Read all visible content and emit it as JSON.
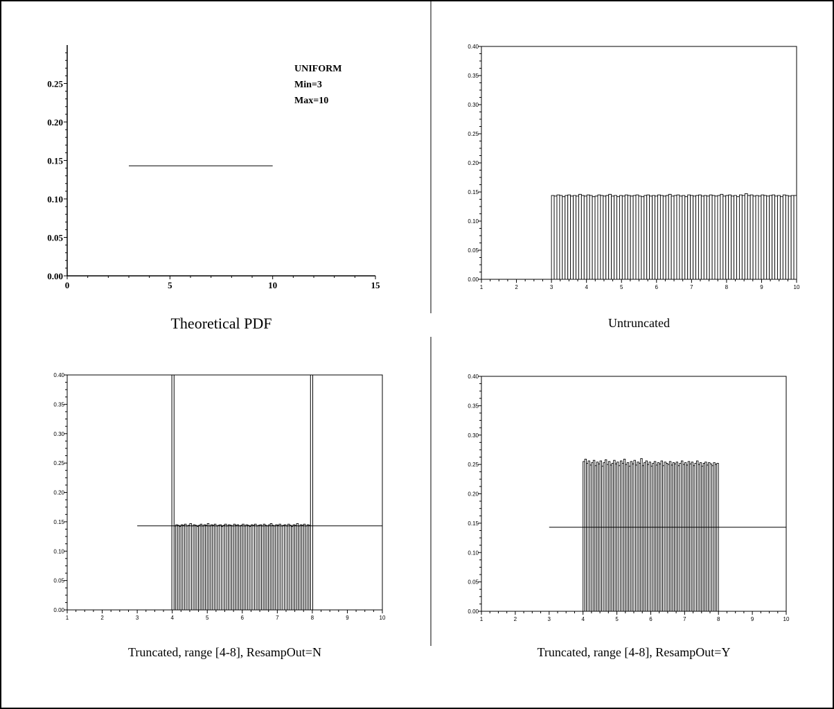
{
  "chart_data": [
    {
      "id": "theoretical",
      "type": "line",
      "caption": "Theoretical PDF",
      "annotation": [
        "UNIFORM",
        "Min=3",
        "Max=10"
      ],
      "xlim": [
        0,
        15
      ],
      "ylim": [
        0,
        0.3
      ],
      "x_ticks": [
        0,
        5,
        10,
        15
      ],
      "x_tick_labels": [
        "0",
        "5",
        "10",
        "15"
      ],
      "y_ticks": [
        0.0,
        0.05,
        0.1,
        0.15,
        0.2,
        0.25
      ],
      "y_tick_labels": [
        "0.00",
        "0.05",
        "0.10",
        "0.15",
        "0.20",
        "0.25"
      ],
      "series": [
        {
          "x": [
            3,
            10
          ],
          "y": [
            0.143,
            0.143
          ]
        }
      ]
    },
    {
      "id": "untruncated",
      "type": "bar",
      "caption": "Untruncated",
      "xlim": [
        1,
        10
      ],
      "ylim": [
        0,
        0.4
      ],
      "x_ticks": [
        1,
        2,
        3,
        4,
        5,
        6,
        7,
        8,
        9,
        10
      ],
      "x_tick_labels": [
        "1",
        "2",
        "3",
        "4",
        "5",
        "6",
        "7",
        "8",
        "9",
        "10"
      ],
      "y_ticks": [
        0.0,
        0.05,
        0.1,
        0.15,
        0.2,
        0.25,
        0.3,
        0.35,
        0.4
      ],
      "y_tick_labels": [
        "0.00",
        "0.05",
        "0.10",
        "0.15",
        "0.20",
        "0.25",
        "0.30",
        "0.35",
        "0.40"
      ],
      "bin_range": [
        3,
        10
      ],
      "bin_count": 90,
      "approx_height": 0.143,
      "bars": [
        0.144,
        0.143,
        0.145,
        0.144,
        0.142,
        0.144,
        0.145,
        0.143,
        0.144,
        0.143,
        0.146,
        0.144,
        0.143,
        0.145,
        0.144,
        0.142,
        0.143,
        0.145,
        0.144,
        0.143,
        0.144,
        0.146,
        0.143,
        0.144,
        0.142,
        0.144,
        0.143,
        0.145,
        0.144,
        0.143,
        0.144,
        0.145,
        0.143,
        0.142,
        0.144,
        0.145,
        0.143,
        0.144,
        0.143,
        0.145,
        0.144,
        0.143,
        0.144,
        0.146,
        0.143,
        0.144,
        0.145,
        0.143,
        0.144,
        0.142,
        0.145,
        0.144,
        0.143,
        0.144,
        0.145,
        0.143,
        0.144,
        0.143,
        0.145,
        0.144,
        0.143,
        0.144,
        0.146,
        0.143,
        0.144,
        0.145,
        0.143,
        0.144,
        0.142,
        0.145,
        0.144,
        0.147,
        0.144,
        0.145,
        0.143,
        0.144,
        0.143,
        0.145,
        0.144,
        0.143,
        0.144,
        0.145,
        0.143,
        0.144,
        0.142,
        0.145,
        0.144,
        0.143,
        0.144,
        0.144
      ]
    },
    {
      "id": "truncated_n",
      "type": "bar",
      "caption": "Truncated, range [4-8], ResampOut=N",
      "xlim": [
        1,
        10
      ],
      "ylim": [
        0,
        0.4
      ],
      "x_ticks": [
        1,
        2,
        3,
        4,
        5,
        6,
        7,
        8,
        9,
        10
      ],
      "x_tick_labels": [
        "1",
        "2",
        "3",
        "4",
        "5",
        "6",
        "7",
        "8",
        "9",
        "10"
      ],
      "y_ticks": [
        0.0,
        0.05,
        0.1,
        0.15,
        0.2,
        0.25,
        0.3,
        0.35,
        0.4
      ],
      "y_tick_labels": [
        "0.00",
        "0.05",
        "0.10",
        "0.15",
        "0.20",
        "0.25",
        "0.30",
        "0.35",
        "0.40"
      ],
      "bin_range": [
        4,
        8
      ],
      "bin_count": 80,
      "approx_height": 0.143,
      "edge_spikes": [
        {
          "x": 4.02,
          "y": 0.4
        },
        {
          "x": 7.98,
          "y": 0.4
        }
      ],
      "pdf_line": {
        "x": [
          3,
          10
        ],
        "y": [
          0.143,
          0.143
        ]
      },
      "bars": [
        0.144,
        0.143,
        0.145,
        0.144,
        0.142,
        0.145,
        0.144,
        0.146,
        0.143,
        0.144,
        0.147,
        0.143,
        0.145,
        0.144,
        0.142,
        0.144,
        0.146,
        0.143,
        0.145,
        0.144,
        0.147,
        0.143,
        0.145,
        0.144,
        0.146,
        0.143,
        0.144,
        0.145,
        0.142,
        0.144,
        0.146,
        0.143,
        0.145,
        0.144,
        0.143,
        0.146,
        0.144,
        0.145,
        0.143,
        0.144,
        0.146,
        0.143,
        0.145,
        0.144,
        0.142,
        0.145,
        0.144,
        0.146,
        0.143,
        0.144,
        0.145,
        0.143,
        0.146,
        0.144,
        0.143,
        0.145,
        0.147,
        0.144,
        0.143,
        0.145,
        0.144,
        0.146,
        0.143,
        0.144,
        0.145,
        0.143,
        0.146,
        0.144,
        0.142,
        0.145,
        0.144,
        0.147,
        0.143,
        0.145,
        0.144,
        0.146,
        0.143,
        0.145,
        0.144,
        0.143
      ]
    },
    {
      "id": "truncated_y",
      "type": "bar",
      "caption": "Truncated, range [4-8], ResampOut=Y",
      "xlim": [
        1,
        10
      ],
      "ylim": [
        0,
        0.4
      ],
      "x_ticks": [
        1,
        2,
        3,
        4,
        5,
        6,
        7,
        8,
        9,
        10
      ],
      "x_tick_labels": [
        "1",
        "2",
        "3",
        "4",
        "5",
        "6",
        "7",
        "8",
        "9",
        "10"
      ],
      "y_ticks": [
        0.0,
        0.05,
        0.1,
        0.15,
        0.2,
        0.25,
        0.3,
        0.35,
        0.4
      ],
      "y_tick_labels": [
        "0.00",
        "0.05",
        "0.10",
        "0.15",
        "0.20",
        "0.25",
        "0.30",
        "0.35",
        "0.40"
      ],
      "bin_range": [
        4,
        8
      ],
      "bin_count": 80,
      "approx_height": 0.25,
      "pdf_line": {
        "x": [
          3,
          10
        ],
        "y": [
          0.143,
          0.143
        ]
      },
      "bars": [
        0.255,
        0.259,
        0.252,
        0.256,
        0.249,
        0.253,
        0.257,
        0.248,
        0.254,
        0.251,
        0.256,
        0.247,
        0.253,
        0.258,
        0.25,
        0.255,
        0.249,
        0.252,
        0.257,
        0.251,
        0.254,
        0.248,
        0.256,
        0.252,
        0.259,
        0.25,
        0.253,
        0.247,
        0.255,
        0.251,
        0.257,
        0.249,
        0.254,
        0.252,
        0.26,
        0.248,
        0.253,
        0.256,
        0.25,
        0.254,
        0.247,
        0.252,
        0.255,
        0.249,
        0.253,
        0.251,
        0.256,
        0.248,
        0.254,
        0.252,
        0.25,
        0.255,
        0.249,
        0.253,
        0.251,
        0.254,
        0.248,
        0.252,
        0.256,
        0.25,
        0.253,
        0.249,
        0.255,
        0.251,
        0.254,
        0.248,
        0.252,
        0.256,
        0.25,
        0.253,
        0.247,
        0.252,
        0.254,
        0.249,
        0.253,
        0.251,
        0.248,
        0.253,
        0.25,
        0.252
      ]
    }
  ]
}
